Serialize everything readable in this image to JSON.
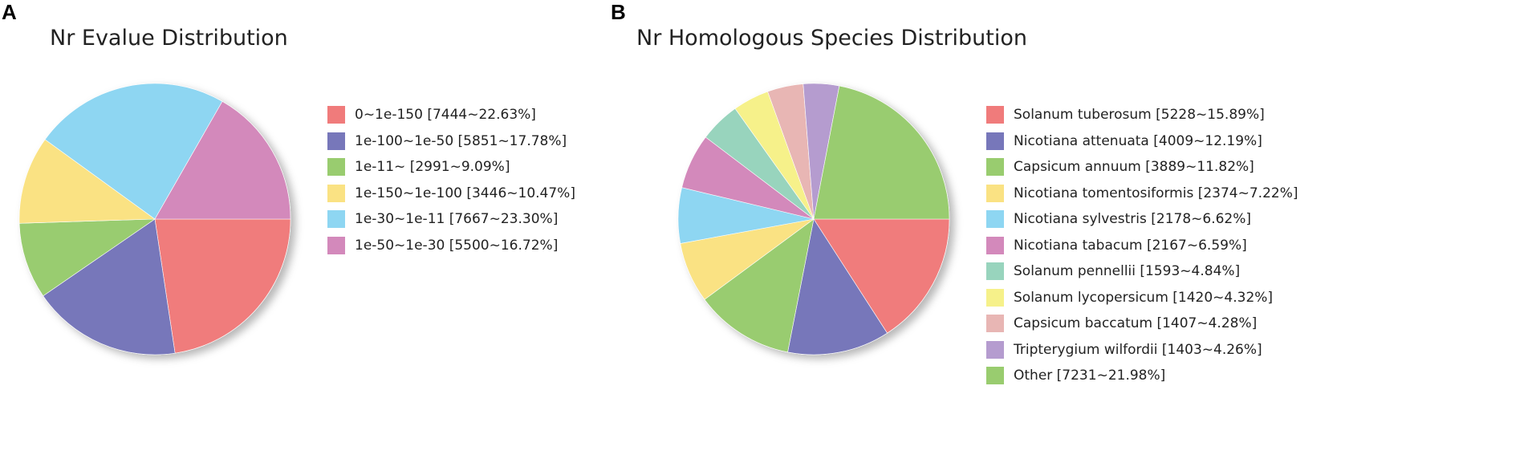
{
  "chart_data": [
    {
      "type": "pie",
      "panel": "A",
      "title": "Nr Evalue Distribution",
      "slices": [
        {
          "label": "0~1e-150 [7444~22.63%]",
          "value": 7444,
          "percent": 22.63,
          "color": "#f07b7b"
        },
        {
          "label": "1e-100~1e-50 [5851~17.78%]",
          "value": 5851,
          "percent": 17.78,
          "color": "#7777ba"
        },
        {
          "label": "1e-11~ [2991~9.09%]",
          "value": 2991,
          "percent": 9.09,
          "color": "#99cc6f"
        },
        {
          "label": "1e-150~1e-100 [3446~10.47%]",
          "value": 3446,
          "percent": 10.47,
          "color": "#fae283"
        },
        {
          "label": "1e-30~1e-11 [7667~23.30%]",
          "value": 7667,
          "percent": 23.3,
          "color": "#8ed6f2"
        },
        {
          "label": "1e-50~1e-30 [5500~16.72%]",
          "value": 5500,
          "percent": 16.72,
          "color": "#d389bb"
        }
      ],
      "legend_position": "right"
    },
    {
      "type": "pie",
      "panel": "B",
      "title": "Nr Homologous Species Distribution",
      "slices": [
        {
          "label": "Solanum tuberosum [5228~15.89%]",
          "value": 5228,
          "percent": 15.89,
          "color": "#f07b7b"
        },
        {
          "label": "Nicotiana attenuata [4009~12.19%]",
          "value": 4009,
          "percent": 12.19,
          "color": "#7777ba"
        },
        {
          "label": "Capsicum annuum [3889~11.82%]",
          "value": 3889,
          "percent": 11.82,
          "color": "#99cc6f"
        },
        {
          "label": "Nicotiana tomentosiformis [2374~7.22%]",
          "value": 2374,
          "percent": 7.22,
          "color": "#fae283"
        },
        {
          "label": "Nicotiana sylvestris [2178~6.62%]",
          "value": 2178,
          "percent": 6.62,
          "color": "#8ed6f2"
        },
        {
          "label": "Nicotiana tabacum [2167~6.59%]",
          "value": 2167,
          "percent": 6.59,
          "color": "#d389bb"
        },
        {
          "label": "Solanum pennellii [1593~4.84%]",
          "value": 1593,
          "percent": 4.84,
          "color": "#98d4bd"
        },
        {
          "label": "Solanum lycopersicum [1420~4.32%]",
          "value": 1420,
          "percent": 4.32,
          "color": "#f6f18a"
        },
        {
          "label": "Capsicum baccatum [1407~4.28%]",
          "value": 1407,
          "percent": 4.28,
          "color": "#e8b6b4"
        },
        {
          "label": "Tripterygium wilfordii [1403~4.26%]",
          "value": 1403,
          "percent": 4.26,
          "color": "#b59ccf"
        },
        {
          "label": "Other [7231~21.98%]",
          "value": 7231,
          "percent": 21.98,
          "color": "#99cc6f"
        }
      ],
      "legend_position": "right"
    }
  ]
}
